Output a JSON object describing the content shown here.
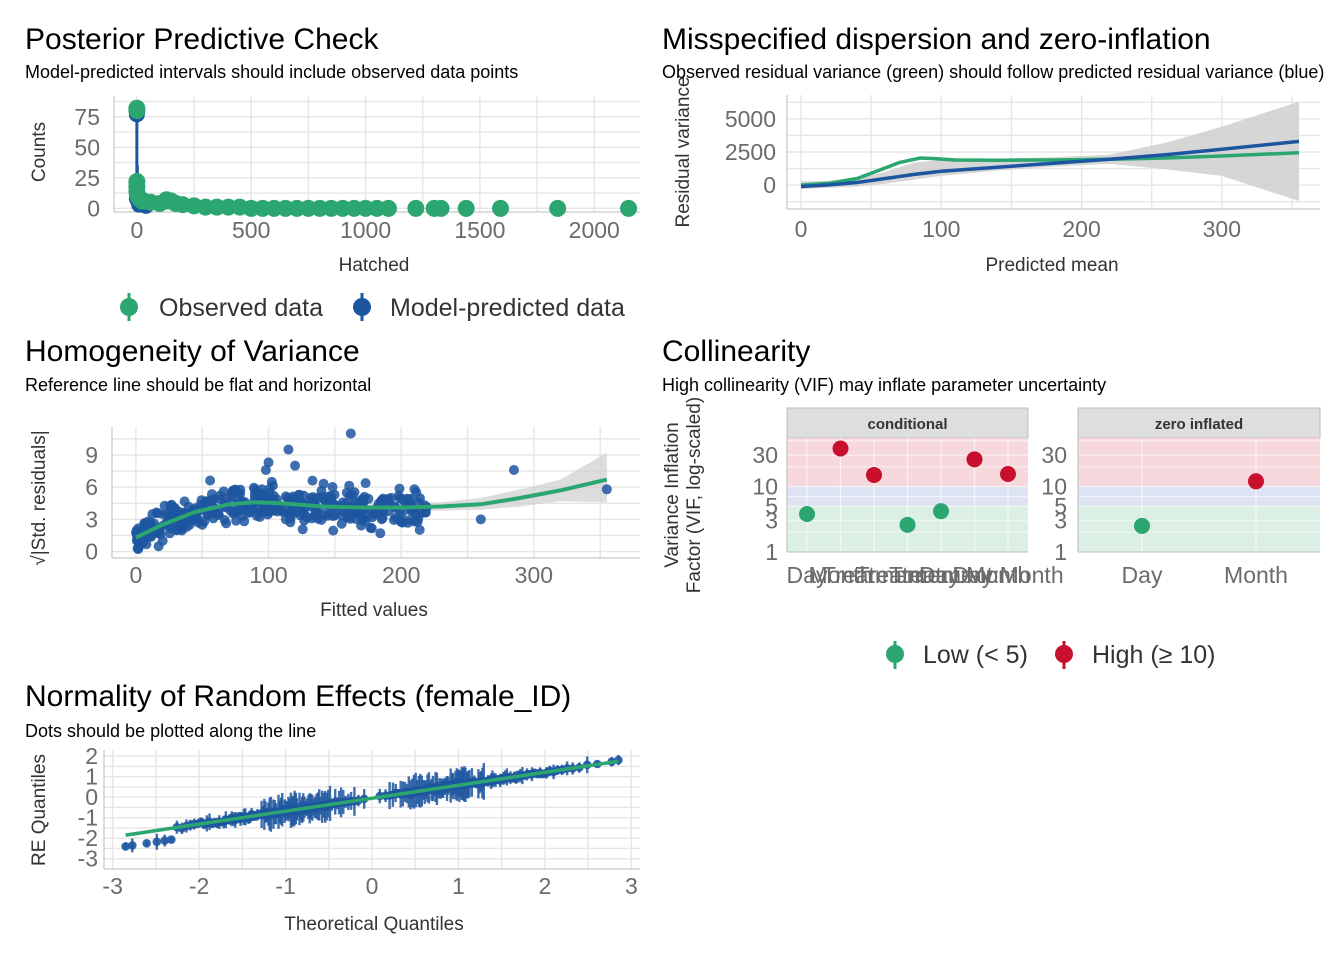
{
  "colors": {
    "green": "#2ba671",
    "blue": "#1d56a0",
    "red": "#c8102e",
    "band_red": "#f7d9dd",
    "band_blue": "#dde3f2",
    "band_green": "#dcefe4",
    "ribbon": "#cfcfcf",
    "grid": "#e6e6e6",
    "strip_bg": "#dedede"
  },
  "chart_data": [
    {
      "id": "ppc",
      "type": "scatter",
      "title": "Posterior Predictive Check",
      "subtitle": "Model-predicted intervals should include observed data points",
      "xlabel": "Hatched",
      "ylabel": "Counts",
      "xlim": [
        -100,
        2200
      ],
      "ylim": [
        -3,
        92
      ],
      "xticks": [
        0,
        500,
        1000,
        1500,
        2000
      ],
      "yticks": [
        0,
        25,
        50,
        75
      ],
      "legend_position": "bottom",
      "legend": [
        "Observed data",
        "Model-predicted data"
      ],
      "series": [
        {
          "name": "Model-predicted data",
          "points": [
            [
              0,
              80
            ],
            [
              0,
              77
            ],
            [
              0,
              12
            ],
            [
              0,
              8
            ],
            [
              10,
              3
            ],
            [
              40,
              2
            ]
          ],
          "intervals": [
            [
              0,
              0,
              80
            ],
            [
              2,
              0,
              35
            ],
            [
              6,
              0,
              20
            ],
            [
              12,
              0,
              14
            ],
            [
              25,
              0,
              10
            ],
            [
              50,
              0,
              7
            ],
            [
              100,
              0,
              5
            ],
            [
              150,
              0,
              3
            ]
          ]
        },
        {
          "name": "Observed data",
          "points": [
            [
              0,
              82
            ],
            [
              0,
              80
            ],
            [
              0,
              22
            ],
            [
              0,
              18
            ],
            [
              0,
              14
            ],
            [
              5,
              10
            ],
            [
              15,
              7
            ],
            [
              30,
              6
            ],
            [
              60,
              5
            ],
            [
              100,
              4
            ],
            [
              130,
              7
            ],
            [
              150,
              6
            ],
            [
              170,
              4
            ],
            [
              200,
              3
            ],
            [
              250,
              2
            ],
            [
              300,
              1
            ],
            [
              350,
              1
            ],
            [
              400,
              1
            ],
            [
              450,
              1
            ],
            [
              500,
              0
            ],
            [
              550,
              0
            ],
            [
              600,
              0
            ],
            [
              650,
              0
            ],
            [
              700,
              0
            ],
            [
              750,
              0
            ],
            [
              800,
              0
            ],
            [
              850,
              0
            ],
            [
              900,
              0
            ],
            [
              950,
              0
            ],
            [
              1000,
              0
            ],
            [
              1050,
              0
            ],
            [
              1100,
              0
            ],
            [
              1220,
              0
            ],
            [
              1300,
              0
            ],
            [
              1330,
              0
            ],
            [
              1440,
              0
            ],
            [
              1590,
              0
            ],
            [
              1840,
              0
            ],
            [
              2150,
              0
            ]
          ]
        }
      ]
    },
    {
      "id": "disp",
      "type": "line",
      "title": "Misspecified dispersion and zero-inflation",
      "subtitle": "Observed residual variance (green) should follow predicted residual variance (blue)",
      "xlabel": "Predicted mean",
      "ylabel": "Residual variance",
      "xlim": [
        -10,
        370
      ],
      "ylim": [
        -1800,
        6800
      ],
      "xticks": [
        0,
        100,
        200,
        300
      ],
      "yticks": [
        0,
        2500,
        5000
      ],
      "series": [
        {
          "name": "observed",
          "x": [
            0,
            20,
            40,
            55,
            70,
            85,
            95,
            110,
            140,
            180,
            220,
            260,
            300,
            355
          ],
          "y": [
            0,
            150,
            500,
            1100,
            1700,
            2050,
            2000,
            1900,
            1880,
            1900,
            1950,
            2050,
            2200,
            2450
          ]
        },
        {
          "name": "predicted",
          "x": [
            0,
            20,
            40,
            60,
            80,
            100,
            140,
            180,
            220,
            260,
            300,
            355
          ],
          "y": [
            -100,
            20,
            200,
            500,
            800,
            1050,
            1350,
            1650,
            1950,
            2300,
            2700,
            3300
          ],
          "ribbon_upper": [
            300,
            320,
            500,
            1000,
            1700,
            1900,
            2000,
            2100,
            2300,
            3200,
            4400,
            6300
          ],
          "ribbon_lower": [
            -300,
            -200,
            -100,
            100,
            400,
            700,
            1100,
            1400,
            1600,
            1200,
            700,
            -1200
          ]
        }
      ]
    },
    {
      "id": "homog",
      "type": "scatter",
      "title": "Homogeneity of Variance",
      "subtitle": "Reference line should be flat and horizontal",
      "xlabel": "Fitted values",
      "ylabel": "√|Std. residuals|",
      "xlim": [
        -18,
        380
      ],
      "ylim": [
        -0.6,
        11.6
      ],
      "xticks": [
        0,
        100,
        200,
        300
      ],
      "yticks": [
        0,
        3,
        6,
        9
      ],
      "points_seed": 7,
      "points_count": 420,
      "extra_points": [
        [
          162,
          11
        ],
        [
          285,
          7.6
        ],
        [
          260,
          3
        ],
        [
          355,
          5.8
        ],
        [
          210,
          5.8
        ],
        [
          190,
          4.5
        ],
        [
          120,
          8
        ],
        [
          115,
          9.5
        ],
        [
          98,
          7.6
        ],
        [
          100,
          8.3
        ]
      ],
      "smooth": {
        "x": [
          0,
          20,
          45,
          70,
          90,
          110,
          140,
          170,
          200,
          230,
          260,
          290,
          320,
          355
        ],
        "y": [
          1.3,
          2.5,
          3.7,
          4.4,
          4.6,
          4.5,
          4.2,
          4.1,
          4.1,
          4.2,
          4.4,
          5.0,
          5.7,
          6.7
        ],
        "upper": [
          1.9,
          2.9,
          4.0,
          4.7,
          4.9,
          4.9,
          4.6,
          4.5,
          4.5,
          4.6,
          5.0,
          5.8,
          6.7,
          9.2
        ],
        "lower": [
          0.7,
          2.1,
          3.4,
          4.1,
          4.3,
          4.2,
          3.8,
          3.7,
          3.7,
          3.8,
          3.9,
          4.2,
          4.7,
          4.6
        ]
      }
    },
    {
      "id": "collin",
      "type": "scatter",
      "title": "Collinearity",
      "subtitle": "High collinearity (VIF) may inflate parameter uncertainty",
      "ylabel_lines": [
        "Variance Inflation",
        "Factor (VIF, log-scaled)"
      ],
      "yticks": [
        1,
        3,
        5,
        10,
        30
      ],
      "ylim_log": [
        1,
        55
      ],
      "legend_position": "bottom",
      "legend": [
        "Low (< 5)",
        "High (≥ 10)"
      ],
      "facets": [
        {
          "strip": "conditional",
          "categories": [
            "Day",
            "Month",
            "Treatment",
            "Day:Month",
            "Treatment:Day",
            "Treatment:Month",
            "Treatment:Day:Month"
          ],
          "tick_labels": [
            "Day",
            "Month",
            "Treatment",
            "Treatment",
            "Treatment",
            "Day:Month",
            "Day:Month"
          ],
          "values": [
            3.8,
            38,
            15,
            2.6,
            4.2,
            26,
            15.5
          ],
          "groups": [
            "low",
            "high",
            "high",
            "low",
            "low",
            "high",
            "high"
          ]
        },
        {
          "strip": "zero inflated",
          "categories": [
            "Day",
            "Month"
          ],
          "tick_labels": [
            "Day",
            "Month"
          ],
          "values": [
            2.5,
            12
          ],
          "groups": [
            "low",
            "high"
          ]
        }
      ]
    },
    {
      "id": "qq",
      "type": "scatter",
      "title": "Normality of Random Effects (female_ID)",
      "subtitle": "Dots should be plotted along the line",
      "xlabel": "Theoretical Quantiles",
      "ylabel": "RE Quantiles",
      "xlim": [
        -3.1,
        3.1
      ],
      "ylim": [
        -3.5,
        2.3
      ],
      "xticks": [
        -3,
        -2,
        -1,
        0,
        1,
        2,
        3
      ],
      "yticks": [
        -3,
        -2,
        -1,
        0,
        1,
        2
      ],
      "n_points": 220,
      "ref_line": {
        "x": [
          -2.85,
          2.85
        ],
        "y": [
          -1.85,
          1.75
        ]
      }
    }
  ]
}
